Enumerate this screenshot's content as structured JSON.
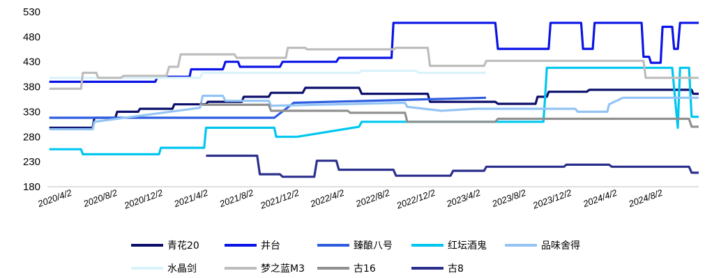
{
  "chart_data": {
    "type": "line",
    "title": "",
    "xlabel": "",
    "ylabel": "",
    "ylim": [
      180,
      530
    ],
    "yticks": [
      180,
      230,
      280,
      330,
      380,
      430,
      480,
      530
    ],
    "xlim": [
      "2020-02-10",
      "2024-11-20"
    ],
    "xticks": [
      {
        "label": "2020/4/2",
        "date": "2020-04-02"
      },
      {
        "label": "2020/8/2",
        "date": "2020-08-02"
      },
      {
        "label": "2020/12/2",
        "date": "2020-12-02"
      },
      {
        "label": "2021/4/2",
        "date": "2021-04-02"
      },
      {
        "label": "2021/8/2",
        "date": "2021-08-02"
      },
      {
        "label": "2021/12/2",
        "date": "2021-12-02"
      },
      {
        "label": "2022/4/2",
        "date": "2022-04-02"
      },
      {
        "label": "2022/8/2",
        "date": "2022-08-02"
      },
      {
        "label": "2022/12/2",
        "date": "2022-12-02"
      },
      {
        "label": "2023/4/2",
        "date": "2023-04-02"
      },
      {
        "label": "2023/8/2",
        "date": "2023-08-02"
      },
      {
        "label": "2023/12/2",
        "date": "2023-12-02"
      },
      {
        "label": "2024/4/2",
        "date": "2024-04-02"
      },
      {
        "label": "2024/8/2",
        "date": "2024-08-02"
      }
    ],
    "grid": false,
    "legend_position": "bottom",
    "series": [
      {
        "name": "青花20",
        "color": "#0b0f6b",
        "points": [
          [
            "2020-02-15",
            298
          ],
          [
            "2020-06-10",
            298
          ],
          [
            "2020-06-15",
            318
          ],
          [
            "2020-08-10",
            318
          ],
          [
            "2020-08-15",
            330
          ],
          [
            "2020-10-10",
            330
          ],
          [
            "2020-10-15",
            336
          ],
          [
            "2021-01-10",
            336
          ],
          [
            "2021-01-15",
            345
          ],
          [
            "2021-04-10",
            345
          ],
          [
            "2021-04-15",
            350
          ],
          [
            "2021-07-15",
            350
          ],
          [
            "2021-07-20",
            360
          ],
          [
            "2021-09-25",
            360
          ],
          [
            "2021-10-01",
            368
          ],
          [
            "2021-12-25",
            368
          ],
          [
            "2022-01-01",
            378
          ],
          [
            "2022-05-25",
            378
          ],
          [
            "2022-06-01",
            366
          ],
          [
            "2022-11-25",
            366
          ],
          [
            "2022-12-01",
            350
          ],
          [
            "2023-05-25",
            350
          ],
          [
            "2023-06-01",
            346
          ],
          [
            "2023-09-10",
            346
          ],
          [
            "2023-09-15",
            360
          ],
          [
            "2023-10-10",
            360
          ],
          [
            "2023-10-15",
            370
          ],
          [
            "2024-01-25",
            370
          ],
          [
            "2024-02-01",
            374
          ],
          [
            "2024-11-01",
            374
          ],
          [
            "2024-11-05",
            366
          ],
          [
            "2024-11-20",
            366
          ]
        ]
      },
      {
        "name": "井台",
        "color": "#0a14e6",
        "points": [
          [
            "2020-02-15",
            390
          ],
          [
            "2020-11-25",
            390
          ],
          [
            "2020-12-01",
            400
          ],
          [
            "2021-02-25",
            400
          ],
          [
            "2021-03-01",
            415
          ],
          [
            "2021-05-25",
            415
          ],
          [
            "2021-06-01",
            430
          ],
          [
            "2021-07-05",
            430
          ],
          [
            "2021-07-10",
            420
          ],
          [
            "2021-10-25",
            420
          ],
          [
            "2021-11-01",
            430
          ],
          [
            "2022-03-25",
            430
          ],
          [
            "2022-04-01",
            438
          ],
          [
            "2022-08-20",
            438
          ],
          [
            "2022-08-25",
            508
          ],
          [
            "2023-05-25",
            508
          ],
          [
            "2023-06-01",
            456
          ],
          [
            "2023-10-15",
            456
          ],
          [
            "2023-10-20",
            508
          ],
          [
            "2024-01-10",
            508
          ],
          [
            "2024-01-15",
            456
          ],
          [
            "2024-02-10",
            456
          ],
          [
            "2024-02-15",
            508
          ],
          [
            "2024-06-20",
            508
          ],
          [
            "2024-06-25",
            440
          ],
          [
            "2024-07-10",
            440
          ],
          [
            "2024-07-15",
            428
          ],
          [
            "2024-08-10",
            428
          ],
          [
            "2024-08-15",
            500
          ],
          [
            "2024-09-10",
            500
          ],
          [
            "2024-09-15",
            456
          ],
          [
            "2024-09-25",
            456
          ],
          [
            "2024-10-01",
            508
          ],
          [
            "2024-11-20",
            508
          ]
        ]
      },
      {
        "name": "臻酿八号",
        "color": "#2e5de0",
        "points": [
          [
            "2020-02-15",
            318
          ],
          [
            "2021-10-10",
            318
          ],
          [
            "2021-12-01",
            348
          ],
          [
            "2023-04-30",
            358
          ]
        ]
      },
      {
        "name": "红坛酒鬼",
        "color": "#00c6f0",
        "points": [
          [
            "2020-02-15",
            255
          ],
          [
            "2020-05-10",
            255
          ],
          [
            "2020-05-15",
            245
          ],
          [
            "2020-12-05",
            245
          ],
          [
            "2020-12-10",
            258
          ],
          [
            "2021-04-05",
            258
          ],
          [
            "2021-04-10",
            298
          ],
          [
            "2021-10-10",
            298
          ],
          [
            "2021-10-15",
            280
          ],
          [
            "2021-12-10",
            280
          ],
          [
            "2022-05-25",
            300
          ],
          [
            "2022-06-01",
            310
          ],
          [
            "2023-10-01",
            310
          ],
          [
            "2023-10-05",
            355
          ],
          [
            "2023-10-10",
            418
          ],
          [
            "2024-09-10",
            418
          ],
          [
            "2024-09-25",
            298
          ],
          [
            "2024-10-01",
            418
          ],
          [
            "2024-10-25",
            418
          ],
          [
            "2024-11-01",
            320
          ],
          [
            "2024-11-20",
            320
          ]
        ]
      },
      {
        "name": "品味舍得",
        "color": "#93c4f5",
        "points": [
          [
            "2020-02-15",
            295
          ],
          [
            "2020-06-10",
            295
          ],
          [
            "2020-06-15",
            310
          ],
          [
            "2021-03-25",
            338
          ],
          [
            "2021-04-01",
            362
          ],
          [
            "2021-05-25",
            362
          ],
          [
            "2021-06-01",
            352
          ],
          [
            "2021-09-25",
            352
          ],
          [
            "2021-10-01",
            342
          ],
          [
            "2022-09-25",
            348
          ],
          [
            "2022-10-01",
            340
          ],
          [
            "2023-01-01",
            332
          ],
          [
            "2023-04-01",
            336
          ],
          [
            "2023-12-25",
            336
          ],
          [
            "2024-01-01",
            330
          ],
          [
            "2024-03-20",
            330
          ],
          [
            "2024-03-25",
            345
          ],
          [
            "2024-05-01",
            358
          ],
          [
            "2024-11-20",
            358
          ]
        ]
      },
      {
        "name": "水晶剑",
        "color": "#d9f3fa",
        "points": [
          [
            "2020-02-15",
            398
          ],
          [
            "2021-03-25",
            398
          ],
          [
            "2021-04-01",
            408
          ],
          [
            "2022-05-25",
            408
          ],
          [
            "2022-06-01",
            412
          ],
          [
            "2022-10-25",
            412
          ],
          [
            "2022-11-01",
            408
          ],
          [
            "2023-04-30",
            408
          ]
        ]
      },
      {
        "name": "梦之蓝M3",
        "color": "#bdbdbd",
        "points": [
          [
            "2020-02-15",
            376
          ],
          [
            "2020-05-10",
            376
          ],
          [
            "2020-05-15",
            408
          ],
          [
            "2020-06-20",
            408
          ],
          [
            "2020-06-25",
            398
          ],
          [
            "2020-08-25",
            398
          ],
          [
            "2020-09-01",
            402
          ],
          [
            "2020-12-25",
            402
          ],
          [
            "2021-01-01",
            420
          ],
          [
            "2021-01-25",
            420
          ],
          [
            "2021-02-01",
            445
          ],
          [
            "2021-06-25",
            445
          ],
          [
            "2021-07-01",
            438
          ],
          [
            "2021-11-10",
            438
          ],
          [
            "2021-11-15",
            458
          ],
          [
            "2022-01-01",
            458
          ],
          [
            "2022-01-05",
            455
          ],
          [
            "2022-08-25",
            455
          ],
          [
            "2022-09-01",
            458
          ],
          [
            "2022-11-25",
            458
          ],
          [
            "2022-12-01",
            422
          ],
          [
            "2023-04-25",
            422
          ],
          [
            "2023-05-01",
            432
          ],
          [
            "2024-06-25",
            432
          ],
          [
            "2024-07-01",
            398
          ],
          [
            "2024-11-20",
            398
          ]
        ]
      },
      {
        "name": "古16",
        "color": "#909090",
        "points": [
          [
            "2021-03-25",
            348
          ],
          [
            "2021-04-01",
            344
          ],
          [
            "2021-09-25",
            344
          ],
          [
            "2021-10-01",
            332
          ],
          [
            "2022-04-25",
            332
          ],
          [
            "2022-05-01",
            328
          ],
          [
            "2022-09-25",
            328
          ],
          [
            "2022-10-01",
            310
          ],
          [
            "2023-05-25",
            310
          ],
          [
            "2023-06-01",
            316
          ],
          [
            "2024-10-25",
            316
          ],
          [
            "2024-11-01",
            300
          ],
          [
            "2024-11-20",
            300
          ]
        ]
      },
      {
        "name": "古8",
        "color": "#2b2f8c",
        "points": [
          [
            "2021-04-10",
            242
          ],
          [
            "2021-08-25",
            242
          ],
          [
            "2021-09-01",
            205
          ],
          [
            "2021-10-25",
            205
          ],
          [
            "2021-11-01",
            200
          ],
          [
            "2022-01-25",
            200
          ],
          [
            "2022-02-01",
            232
          ],
          [
            "2022-03-25",
            232
          ],
          [
            "2022-04-01",
            214
          ],
          [
            "2022-08-25",
            214
          ],
          [
            "2022-09-01",
            202
          ],
          [
            "2023-01-25",
            202
          ],
          [
            "2023-02-01",
            212
          ],
          [
            "2023-04-25",
            212
          ],
          [
            "2023-05-01",
            220
          ],
          [
            "2023-11-25",
            220
          ],
          [
            "2023-12-01",
            224
          ],
          [
            "2024-03-25",
            224
          ],
          [
            "2024-04-01",
            220
          ],
          [
            "2024-10-25",
            220
          ],
          [
            "2024-11-01",
            208
          ],
          [
            "2024-11-20",
            208
          ]
        ]
      }
    ]
  }
}
